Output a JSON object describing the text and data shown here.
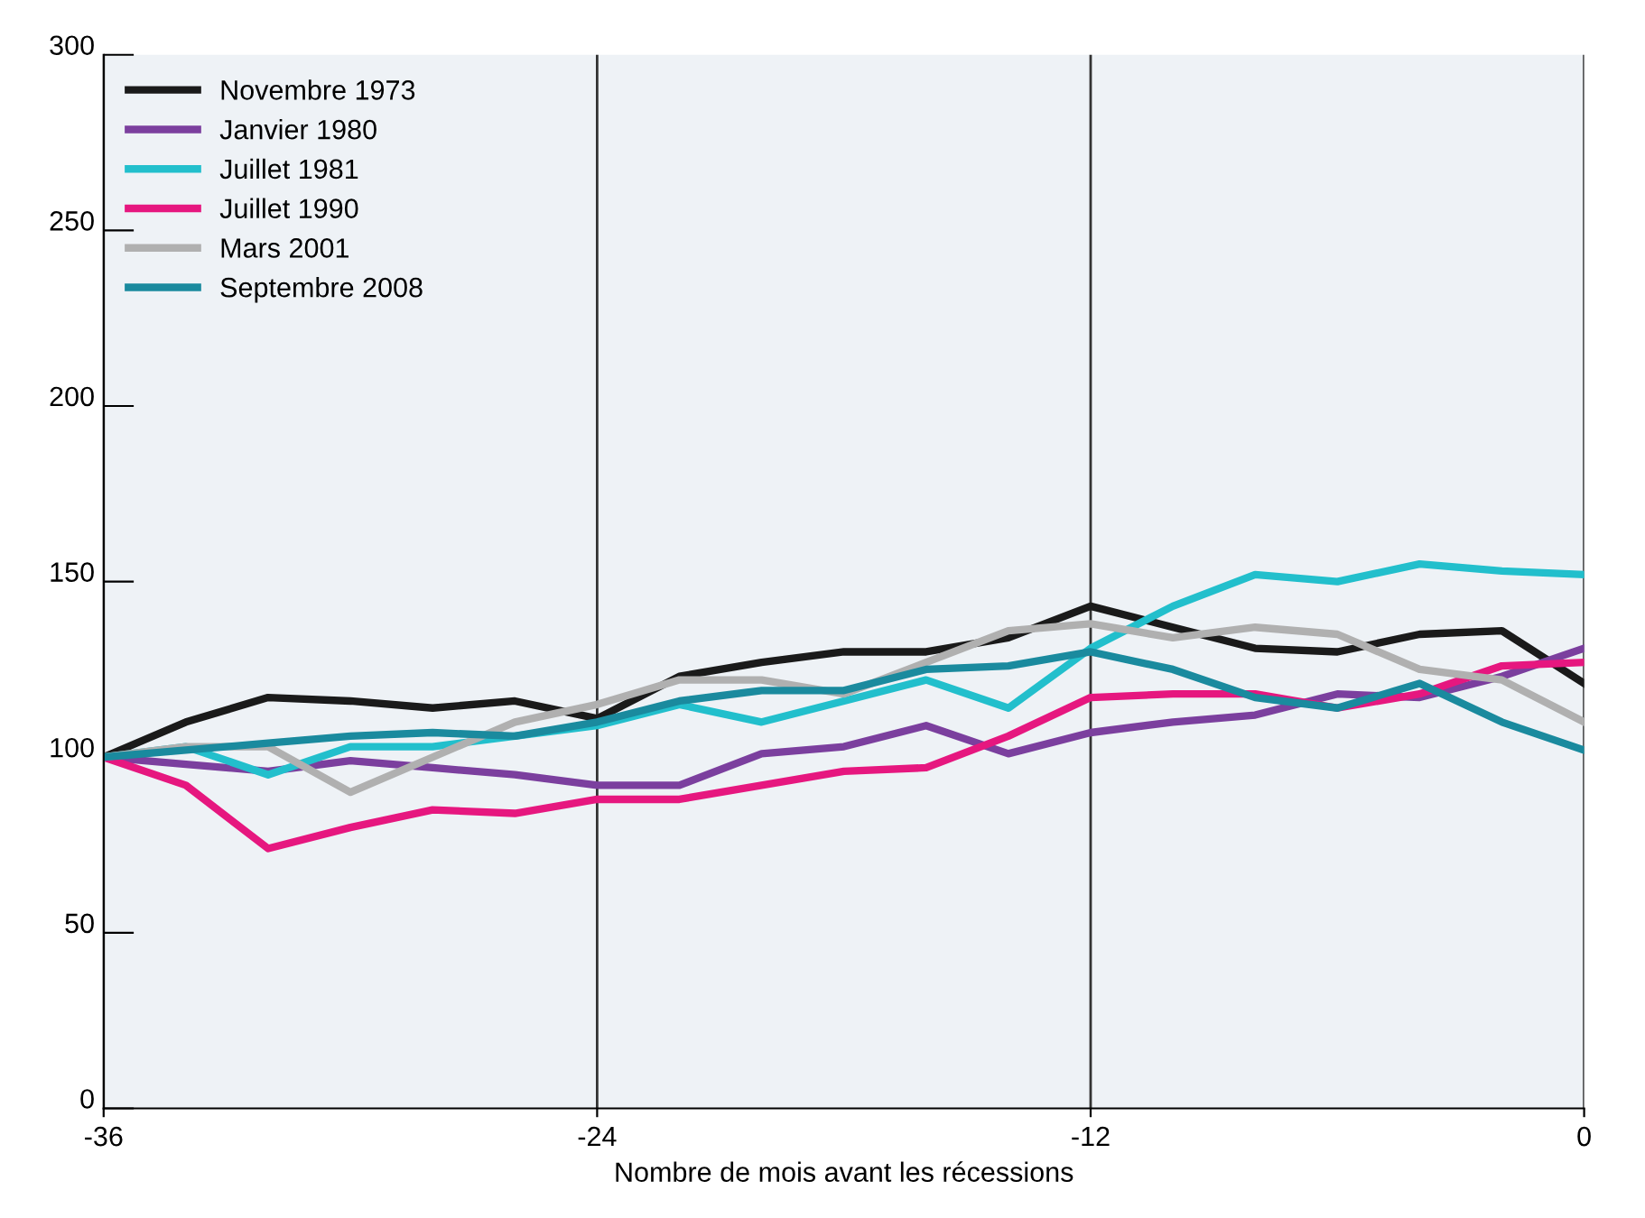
{
  "chart_data": {
    "type": "line",
    "xlabel": "Nombre de mois avant les récessions",
    "x": [
      -36,
      -34,
      -32,
      -30,
      -28,
      -26,
      -24,
      -22,
      -20,
      -18,
      -16,
      -14,
      -12,
      -10,
      -8,
      -6,
      -4,
      -2,
      0
    ],
    "series": [
      {
        "name": "Novembre 1973",
        "color": "#1a1a1a",
        "values": [
          100,
          110,
          117,
          116,
          114,
          116,
          111,
          123,
          127,
          130,
          130,
          134,
          143,
          137,
          131,
          130,
          135,
          136,
          121
        ]
      },
      {
        "name": "Janvier 1980",
        "color": "#7b3f9e",
        "values": [
          100,
          98,
          96,
          99,
          97,
          95,
          92,
          92,
          101,
          103,
          109,
          101,
          107,
          110,
          112,
          118,
          117,
          123,
          131
        ]
      },
      {
        "name": "Juillet 1981",
        "color": "#22bfcc",
        "values": [
          100,
          103,
          95,
          103,
          103,
          106,
          109,
          115,
          110,
          116,
          122,
          114,
          131,
          143,
          152,
          150,
          155,
          153,
          152
        ]
      },
      {
        "name": "Juillet 1990",
        "color": "#e6177f",
        "values": [
          100,
          92,
          74,
          80,
          85,
          84,
          88,
          88,
          92,
          96,
          97,
          106,
          117,
          118,
          118,
          114,
          118,
          126,
          127
        ]
      },
      {
        "name": "Mars 2001",
        "color": "#b0b0b0",
        "values": [
          100,
          103,
          103,
          90,
          100,
          110,
          115,
          122,
          122,
          118,
          127,
          136,
          138,
          134,
          137,
          135,
          125,
          122,
          110
        ]
      },
      {
        "name": "Septembre 2008",
        "color": "#1a8a9e",
        "values": [
          100,
          102,
          104,
          106,
          107,
          106,
          110,
          116,
          119,
          119,
          125,
          126,
          130,
          125,
          117,
          114,
          121,
          110,
          102
        ]
      }
    ],
    "xlim": [
      -36,
      0
    ],
    "xticks": [
      -36,
      -24,
      -12,
      0
    ],
    "ylim": [
      0,
      300
    ],
    "yticks": [
      0,
      50,
      100,
      150,
      200,
      250,
      300
    ],
    "grid": "x",
    "legend": "top left",
    "marker": "none",
    "line_style": "solid"
  }
}
